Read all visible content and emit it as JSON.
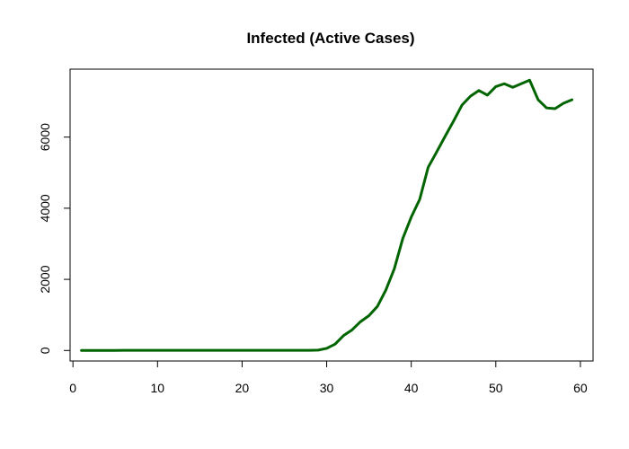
{
  "chart_data": {
    "type": "line",
    "title": "Infected (Active Cases)",
    "xlabel": "",
    "ylabel": "",
    "xlim": [
      1,
      59
    ],
    "ylim": [
      0,
      7600
    ],
    "xticks": [
      0,
      10,
      20,
      30,
      40,
      50,
      60
    ],
    "yticks": [
      0,
      2000,
      4000,
      6000
    ],
    "grid": false,
    "series": [
      {
        "color": "#006400",
        "x": [
          1,
          2,
          3,
          4,
          5,
          6,
          7,
          8,
          9,
          10,
          11,
          12,
          13,
          14,
          15,
          16,
          17,
          18,
          19,
          20,
          21,
          22,
          23,
          24,
          25,
          26,
          27,
          28,
          29,
          30,
          31,
          32,
          33,
          34,
          35,
          36,
          37,
          38,
          39,
          40,
          41,
          42,
          43,
          44,
          45,
          46,
          47,
          48,
          49,
          50,
          51,
          52,
          53,
          54,
          55,
          56,
          57,
          58,
          59
        ],
        "y": [
          1,
          1,
          1,
          2,
          2,
          5,
          5,
          5,
          5,
          5,
          5,
          5,
          5,
          5,
          5,
          5,
          5,
          5,
          5,
          5,
          5,
          5,
          5,
          5,
          5,
          5,
          5,
          5,
          10,
          60,
          180,
          420,
          580,
          810,
          980,
          1240,
          1700,
          2300,
          3150,
          3750,
          4250,
          5150,
          5580,
          6020,
          6450,
          6900,
          7150,
          7310,
          7180,
          7420,
          7500,
          7400,
          7500,
          7600,
          7050,
          6820,
          6800,
          6950,
          7050
        ]
      }
    ]
  }
}
